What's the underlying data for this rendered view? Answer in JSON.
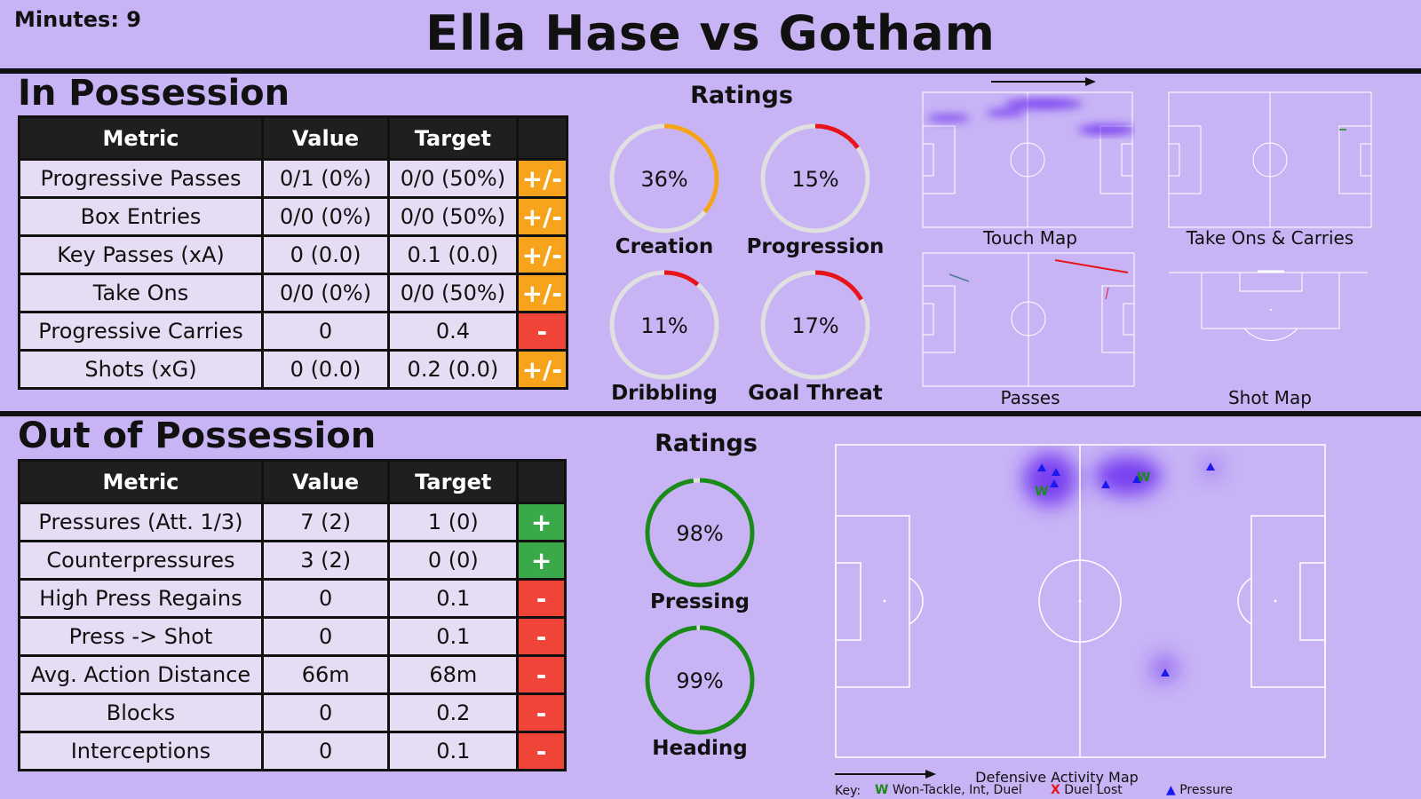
{
  "header": {
    "minutes_label": "Minutes: 9",
    "title": "Ella Hase vs Gotham"
  },
  "in_possession": {
    "title": "In Possession",
    "columns": [
      "Metric",
      "Value",
      "Target",
      ""
    ],
    "rows": [
      {
        "metric": "Progressive Passes",
        "value": "0/1 (0%)",
        "target": "0/0 (50%)",
        "rating": "+/-"
      },
      {
        "metric": "Box Entries",
        "value": "0/0 (0%)",
        "target": "0/0 (50%)",
        "rating": "+/-"
      },
      {
        "metric": "Key Passes (xA)",
        "value": "0 (0.0)",
        "target": "0.1 (0.0)",
        "rating": "+/-"
      },
      {
        "metric": "Take Ons",
        "value": "0/0 (0%)",
        "target": "0/0 (50%)",
        "rating": "+/-"
      },
      {
        "metric": "Progressive Carries",
        "value": "0",
        "target": "0.4",
        "rating": "-"
      },
      {
        "metric": "Shots (xG)",
        "value": "0 (0.0)",
        "target": "0.2 (0.0)",
        "rating": "+/-"
      }
    ],
    "ratings_title": "Ratings",
    "ratings": [
      {
        "label": "Creation",
        "pct_text": "36%",
        "pct": 36,
        "color": "#f5a31a"
      },
      {
        "label": "Progression",
        "pct_text": "15%",
        "pct": 15,
        "color": "#e8141c"
      },
      {
        "label": "Dribbling",
        "pct_text": "11%",
        "pct": 11,
        "color": "#e8141c"
      },
      {
        "label": "Goal Threat",
        "pct_text": "17%",
        "pct": 17,
        "color": "#e8141c"
      }
    ],
    "maps": {
      "touch": "Touch Map",
      "takeons": "Take Ons & Carries",
      "passes": "Passes",
      "shots": "Shot Map"
    }
  },
  "out_of_possession": {
    "title": "Out of Possession",
    "columns": [
      "Metric",
      "Value",
      "Target",
      ""
    ],
    "rows": [
      {
        "metric": "Pressures (Att. 1/3)",
        "value": "7 (2)",
        "target": "1 (0)",
        "rating": "+"
      },
      {
        "metric": "Counterpressures",
        "value": "3 (2)",
        "target": "0 (0)",
        "rating": "+"
      },
      {
        "metric": "High Press Regains",
        "value": "0",
        "target": "0.1",
        "rating": "-"
      },
      {
        "metric": "Press -> Shot",
        "value": "0",
        "target": "0.1",
        "rating": "-"
      },
      {
        "metric": "Avg. Action Distance",
        "value": "66m",
        "target": "68m",
        "rating": "-"
      },
      {
        "metric": "Blocks",
        "value": "0",
        "target": "0.2",
        "rating": "-"
      },
      {
        "metric": "Interceptions",
        "value": "0",
        "target": "0.1",
        "rating": "-"
      }
    ],
    "ratings_title": "Ratings",
    "ratings": [
      {
        "label": "Pressing",
        "pct_text": "98%",
        "pct": 98,
        "color": "#1a8a1a"
      },
      {
        "label": "Heading",
        "pct_text": "99%",
        "pct": 99,
        "color": "#1a8a1a"
      }
    ],
    "map_title": "Defensive Activity Map",
    "key": {
      "label": "Key:",
      "won_symbol": "W",
      "won": "Won-Tackle, Int, Duel",
      "lost_symbol": "X",
      "lost": "Duel Lost",
      "pressure_symbol": "▲",
      "pressure": "Pressure"
    }
  },
  "colors": {
    "background": "#c8b4f5",
    "header_row": "#1f1f1f",
    "mixed": "#f7a31c",
    "negative": "#f04438",
    "positive": "#3aa94a",
    "heat": "#6a2cf0",
    "pressure_marker": "#1a1af0",
    "won_marker": "#1a8a1a",
    "lost_marker": "#e8141c"
  }
}
